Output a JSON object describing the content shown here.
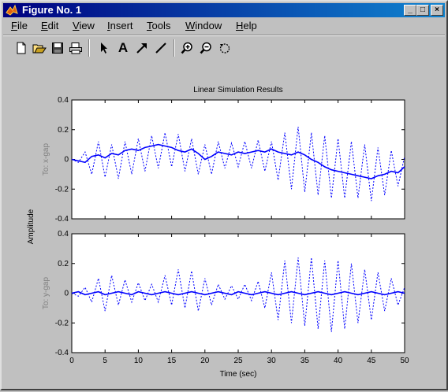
{
  "window": {
    "title": "Figure No. 1",
    "controls": {
      "minimize": "_",
      "maximize": "□",
      "close": "×"
    }
  },
  "menu": [
    {
      "label": "File",
      "key": "F",
      "rest": "ile"
    },
    {
      "label": "Edit",
      "key": "E",
      "rest": "dit"
    },
    {
      "label": "View",
      "key": "V",
      "rest": "iew"
    },
    {
      "label": "Insert",
      "key": "I",
      "rest": "nsert"
    },
    {
      "label": "Tools",
      "key": "T",
      "rest": "ools"
    },
    {
      "label": "Window",
      "key": "W",
      "rest": "indow"
    },
    {
      "label": "Help",
      "key": "H",
      "rest": "elp"
    }
  ],
  "toolbar": {
    "tools": [
      "new-file-icon",
      "open-file-icon",
      "save-icon",
      "print-icon",
      "pointer-icon",
      "text-icon",
      "arrow-icon",
      "line-icon",
      "zoom-in-icon",
      "zoom-out-icon",
      "rotate-icon"
    ],
    "text_tool_label": "A"
  },
  "colors": {
    "series": "#0000ff",
    "accent_title": "#000080",
    "background": "#c0c0c0"
  },
  "chart_data": {
    "type": "line",
    "title": "Linear Simulation Results",
    "ylabel": "Amplitude",
    "xlabel": "Time (sec)",
    "xlim": [
      0,
      50
    ],
    "xticks": [
      0,
      5,
      10,
      15,
      20,
      25,
      30,
      35,
      40,
      45,
      50
    ],
    "yticks": [
      -0.4,
      -0.2,
      0,
      0.2,
      0.4
    ],
    "ytick_labels": [
      "-0.4",
      "-0.2",
      "0",
      "0.2",
      "0.4"
    ],
    "grid": false,
    "panels": [
      {
        "name": "To: x-gap",
        "ylim": [
          -0.4,
          0.4
        ],
        "series": [
          {
            "style": "solid",
            "x": [
              0,
              1,
              2,
              3,
              4,
              5,
              6,
              7,
              8,
              9,
              10,
              11,
              12,
              13,
              14,
              15,
              16,
              17,
              18,
              19,
              20,
              21,
              22,
              23,
              24,
              25,
              26,
              27,
              28,
              29,
              30,
              31,
              32,
              33,
              34,
              35,
              36,
              37,
              38,
              39,
              40,
              41,
              42,
              43,
              44,
              45,
              46,
              47,
              48,
              49,
              50
            ],
            "y": [
              0,
              -0.01,
              -0.02,
              0.02,
              0.03,
              0.01,
              0.04,
              0.03,
              0.06,
              0.07,
              0.06,
              0.08,
              0.09,
              0.1,
              0.09,
              0.08,
              0.06,
              0.05,
              0.07,
              0.04,
              0.0,
              0.02,
              0.05,
              0.04,
              0.03,
              0.05,
              0.04,
              0.05,
              0.06,
              0.05,
              0.07,
              0.05,
              0.04,
              0.03,
              0.05,
              0.03,
              0.0,
              -0.02,
              -0.05,
              -0.07,
              -0.08,
              -0.09,
              -0.1,
              -0.11,
              -0.12,
              -0.13,
              -0.11,
              -0.1,
              -0.08,
              -0.09,
              -0.05
            ]
          },
          {
            "style": "dotted",
            "x": [
              0,
              1,
              2,
              3,
              4,
              5,
              6,
              7,
              8,
              9,
              10,
              11,
              12,
              13,
              14,
              15,
              16,
              17,
              18,
              19,
              20,
              21,
              22,
              23,
              24,
              25,
              26,
              27,
              28,
              29,
              30,
              31,
              32,
              33,
              34,
              35,
              36,
              37,
              38,
              39,
              40,
              41,
              42,
              43,
              44,
              45,
              46,
              47,
              48,
              49,
              50
            ],
            "y": [
              0.0,
              -0.02,
              0.05,
              -0.1,
              0.12,
              -0.12,
              0.1,
              -0.13,
              0.12,
              -0.1,
              0.14,
              -0.08,
              0.16,
              -0.06,
              0.18,
              -0.05,
              0.17,
              -0.08,
              0.14,
              -0.1,
              0.1,
              -0.1,
              0.12,
              -0.06,
              0.11,
              -0.05,
              0.12,
              -0.06,
              0.13,
              -0.08,
              0.12,
              -0.14,
              0.18,
              -0.2,
              0.22,
              -0.22,
              0.18,
              -0.24,
              0.16,
              -0.26,
              0.14,
              -0.26,
              0.12,
              -0.26,
              0.1,
              -0.28,
              0.08,
              -0.24,
              0.06,
              -0.18,
              0.02
            ]
          }
        ]
      },
      {
        "name": "To: y-gap",
        "ylim": [
          -0.4,
          0.4
        ],
        "series": [
          {
            "style": "solid",
            "x": [
              0,
              1,
              2,
              3,
              4,
              5,
              6,
              7,
              8,
              9,
              10,
              11,
              12,
              13,
              14,
              15,
              16,
              17,
              18,
              19,
              20,
              21,
              22,
              23,
              24,
              25,
              26,
              27,
              28,
              29,
              30,
              31,
              32,
              33,
              34,
              35,
              36,
              37,
              38,
              39,
              40,
              41,
              42,
              43,
              44,
              45,
              46,
              47,
              48,
              49,
              50
            ],
            "y": [
              0.0,
              0.01,
              -0.01,
              0.0,
              0.01,
              -0.01,
              0.0,
              0.01,
              0.0,
              -0.01,
              0.01,
              0.0,
              -0.01,
              0.0,
              0.01,
              0.0,
              -0.01,
              0.0,
              0.01,
              0.0,
              -0.01,
              0.0,
              0.01,
              0.0,
              -0.01,
              0.01,
              0.0,
              -0.01,
              0.0,
              0.01,
              0.0,
              -0.01,
              0.0,
              0.01,
              0.0,
              -0.01,
              0.0,
              0.01,
              0.0,
              -0.01,
              0.0,
              0.01,
              0.0,
              -0.01,
              0.0,
              0.01,
              0.0,
              -0.01,
              0.0,
              0.01,
              0.0
            ]
          },
          {
            "style": "dotted",
            "x": [
              0,
              1,
              2,
              3,
              4,
              5,
              6,
              7,
              8,
              9,
              10,
              11,
              12,
              13,
              14,
              15,
              16,
              17,
              18,
              19,
              20,
              21,
              22,
              23,
              24,
              25,
              26,
              27,
              28,
              29,
              30,
              31,
              32,
              33,
              34,
              35,
              36,
              37,
              38,
              39,
              40,
              41,
              42,
              43,
              44,
              45,
              46,
              47,
              48,
              49,
              50
            ],
            "y": [
              0.0,
              -0.02,
              0.04,
              -0.06,
              0.1,
              -0.12,
              0.12,
              -0.08,
              0.09,
              -0.06,
              0.07,
              -0.05,
              0.06,
              -0.06,
              0.12,
              -0.08,
              0.16,
              -0.1,
              0.15,
              -0.12,
              0.1,
              -0.08,
              0.06,
              -0.04,
              0.05,
              -0.04,
              0.06,
              -0.05,
              0.08,
              -0.1,
              0.14,
              -0.18,
              0.22,
              -0.2,
              0.24,
              -0.22,
              0.24,
              -0.24,
              0.22,
              -0.26,
              0.22,
              -0.24,
              0.2,
              -0.2,
              0.16,
              -0.18,
              0.14,
              -0.12,
              0.1,
              -0.08,
              0.04
            ]
          }
        ]
      }
    ]
  }
}
